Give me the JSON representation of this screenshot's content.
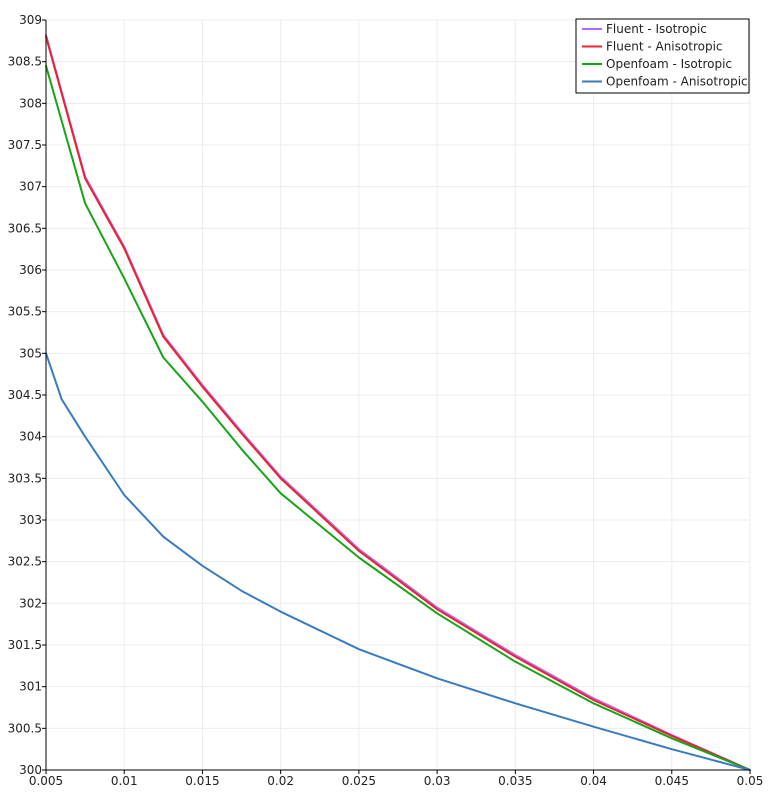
{
  "chart_data": {
    "type": "line",
    "title": "",
    "xlabel": "",
    "ylabel": "",
    "xlim": [
      0.005,
      0.05
    ],
    "ylim": [
      300,
      309
    ],
    "grid": true,
    "legend_position": "top-right",
    "x_ticks": [
      0.005,
      0.01,
      0.015,
      0.02,
      0.025,
      0.03,
      0.035,
      0.04,
      0.045,
      0.05
    ],
    "x_tick_labels": [
      "0.005",
      "0.01",
      "0.015",
      "0.02",
      "0.025",
      "0.03",
      "0.035",
      "0.04",
      "0.045",
      "0.05"
    ],
    "y_ticks": [
      300,
      300.5,
      301,
      301.5,
      302,
      302.5,
      303,
      303.5,
      304,
      304.5,
      305,
      305.5,
      306,
      306.5,
      307,
      307.5,
      308,
      308.5,
      309
    ],
    "y_tick_labels": [
      "300",
      "300.5",
      "301",
      "301.5",
      "302",
      "302.5",
      "303",
      "303.5",
      "304",
      "304.5",
      "305",
      "305.5",
      "306",
      "306.5",
      "307",
      "307.5",
      "308",
      "308.5",
      "309"
    ],
    "series": [
      {
        "name": "Fluent - Isotropic",
        "color": "#b36bff",
        "x": [
          0.005,
          0.0075,
          0.01,
          0.0125,
          0.015,
          0.0175,
          0.02,
          0.025,
          0.03,
          0.035,
          0.04,
          0.045,
          0.05
        ],
        "y": [
          308.82,
          307.12,
          306.28,
          305.22,
          304.62,
          304.06,
          303.52,
          302.65,
          301.95,
          301.38,
          300.86,
          300.42,
          300.0
        ]
      },
      {
        "name": "Fluent - Anisotropic",
        "color": "#e8242e",
        "x": [
          0.005,
          0.0075,
          0.01,
          0.0125,
          0.015,
          0.0175,
          0.02,
          0.025,
          0.03,
          0.035,
          0.04,
          0.045,
          0.05
        ],
        "y": [
          308.8,
          307.1,
          306.26,
          305.2,
          304.6,
          304.04,
          303.5,
          302.63,
          301.93,
          301.36,
          300.84,
          300.41,
          300.0
        ]
      },
      {
        "name": "Openfoam - Isotropic",
        "color": "#16a516",
        "x": [
          0.005,
          0.0075,
          0.01,
          0.0125,
          0.015,
          0.0175,
          0.02,
          0.025,
          0.03,
          0.035,
          0.04,
          0.045,
          0.05
        ],
        "y": [
          308.45,
          306.8,
          305.9,
          304.95,
          304.42,
          303.85,
          303.32,
          302.55,
          301.88,
          301.3,
          300.8,
          300.38,
          300.0
        ]
      },
      {
        "name": "Openfoam - Anisotropic",
        "color": "#3a7abf",
        "x": [
          0.005,
          0.006,
          0.0075,
          0.01,
          0.0125,
          0.015,
          0.0175,
          0.02,
          0.025,
          0.03,
          0.035,
          0.04,
          0.045,
          0.05
        ],
        "y": [
          305.0,
          304.45,
          304.0,
          303.3,
          302.8,
          302.45,
          302.15,
          301.9,
          301.45,
          301.1,
          300.8,
          300.52,
          300.25,
          300.0
        ]
      }
    ]
  }
}
